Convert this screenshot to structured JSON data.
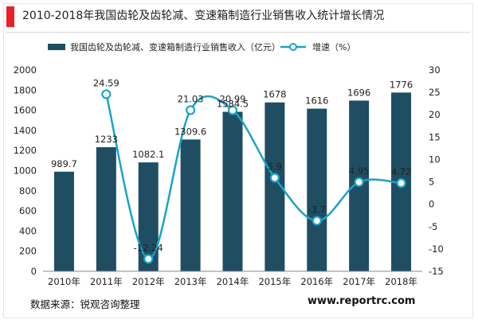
{
  "header": {
    "title": "2010-2018年我国齿轮及齿轮减、变速箱制造行业销售收入统计增长情况",
    "accent_color": "#e8202a"
  },
  "footer": {
    "source": "数据来源：锐观咨询整理",
    "website": "www.reportrc.com"
  },
  "chart_data": {
    "type": "bar+line",
    "categories": [
      "2010年",
      "2011年",
      "2012年",
      "2013年",
      "2014年",
      "2015年",
      "2016年",
      "2017年",
      "2018年"
    ],
    "series": [
      {
        "name": "我国齿轮及齿轮减、变速箱制造行业销售收入（亿元）",
        "type": "bar",
        "axis": "left",
        "color": "#1f4e63",
        "values": [
          989.7,
          1233,
          1082.1,
          1309.6,
          1584.5,
          1678,
          1616,
          1696,
          1776
        ],
        "labels": [
          "989.7",
          "1233",
          "1082.1",
          "1309.6",
          "1584.5",
          "1678",
          "1616",
          "1696",
          "1776"
        ]
      },
      {
        "name": "增速（%）",
        "type": "line",
        "axis": "right",
        "color": "#1aa3c8",
        "smooth": true,
        "values": [
          null,
          24.59,
          -12.24,
          21.03,
          20.99,
          5.9,
          -3.7,
          4.95,
          4.72
        ],
        "labels": [
          "",
          "24.59",
          "-12.24",
          "21.03",
          "20.99",
          "5.9",
          "-3.7",
          "4.95",
          "4.72"
        ]
      }
    ],
    "y_left": {
      "min": 0,
      "max": 2000,
      "ticks": [
        0,
        200,
        400,
        600,
        800,
        1000,
        1200,
        1400,
        1600,
        1800,
        2000
      ],
      "tick_labels": [
        "0",
        "200",
        "400",
        "600",
        "800",
        "1000",
        "1200",
        "1400",
        "1600",
        "1800",
        "2000"
      ]
    },
    "y_right": {
      "min": -15,
      "max": 30,
      "ticks": [
        -15,
        -10,
        -5,
        0,
        5,
        10,
        15,
        20,
        25,
        30
      ],
      "tick_labels": [
        "-15",
        "-10",
        "-5",
        "0",
        "5",
        "10",
        "15",
        "20",
        "25",
        "30"
      ]
    },
    "grid": false,
    "legend_position": "top"
  }
}
